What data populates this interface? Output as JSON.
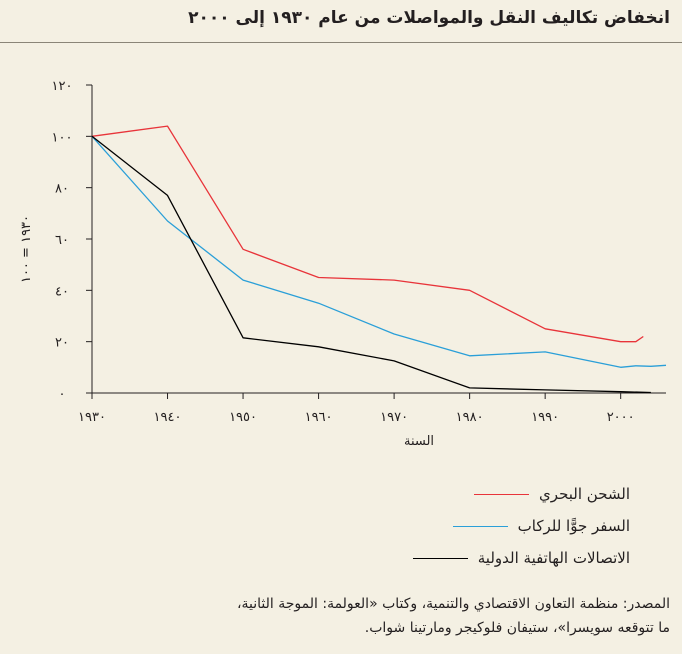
{
  "title": "انخفاض تكاليف النقل والمواصلات من عام ١٩٣٠ إلى ٢٠٠٠",
  "source": {
    "line1": "المصدر: منظمة التعاون الاقتصادي والتنمية، وكتاب «العولمة: الموجة الثانية،",
    "line2": "ما تتوقعه سويسرا»، ستيفان فلوكيجر ومارتينا شواب."
  },
  "chart_data": {
    "type": "line",
    "title": "انخفاض تكاليف النقل والمواصلات من عام ١٩٣٠ إلى ٢٠٠٠",
    "xlabel": "السنة",
    "ylabel": "١٩٣٠ = ١٠٠",
    "xlim": [
      1930,
      2006
    ],
    "ylim": [
      0,
      120
    ],
    "x_ticks": [
      1930,
      1940,
      1950,
      1960,
      1970,
      1980,
      1990,
      2000
    ],
    "x_tick_labels": [
      "١٩٣٠",
      "١٩٤٠",
      "١٩٥٠",
      "١٩٦٠",
      "١٩٧٠",
      "١٩٨٠",
      "١٩٩٠",
      "٢٠٠٠"
    ],
    "y_ticks": [
      0,
      20,
      40,
      60,
      80,
      100,
      120
    ],
    "y_tick_labels": [
      "٠",
      "٢٠",
      "٤٠",
      "٦٠",
      "٨٠",
      "١٠٠",
      "١٢٠"
    ],
    "grid": false,
    "legend_position": "bottom-right",
    "series": [
      {
        "name": "الشحن البحري",
        "color": "#e8343a",
        "points": [
          [
            1930,
            100
          ],
          [
            1940,
            104
          ],
          [
            1950,
            56
          ],
          [
            1960,
            45
          ],
          [
            1970,
            44
          ],
          [
            1980,
            40
          ],
          [
            1990,
            25
          ],
          [
            2000,
            20
          ],
          [
            2002,
            20
          ],
          [
            2003,
            22
          ]
        ]
      },
      {
        "name": "السفر جوًّا للركاب",
        "color": "#2a9fd8",
        "points": [
          [
            1930,
            100
          ],
          [
            1940,
            67
          ],
          [
            1950,
            44
          ],
          [
            1960,
            35
          ],
          [
            1970,
            23
          ],
          [
            1980,
            14.5
          ],
          [
            1990,
            16
          ],
          [
            2000,
            10
          ],
          [
            2002,
            10.6
          ],
          [
            2004,
            10.4
          ],
          [
            2006,
            10.8
          ]
        ]
      },
      {
        "name": "الاتصالات الهاتفية الدولية",
        "color": "#000000",
        "points": [
          [
            1930,
            100
          ],
          [
            1940,
            77
          ],
          [
            1950,
            21.5
          ],
          [
            1960,
            18
          ],
          [
            1970,
            12.5
          ],
          [
            1980,
            2
          ],
          [
            1990,
            1.2
          ],
          [
            2000,
            0.5
          ],
          [
            2004,
            0.2
          ]
        ]
      }
    ]
  }
}
